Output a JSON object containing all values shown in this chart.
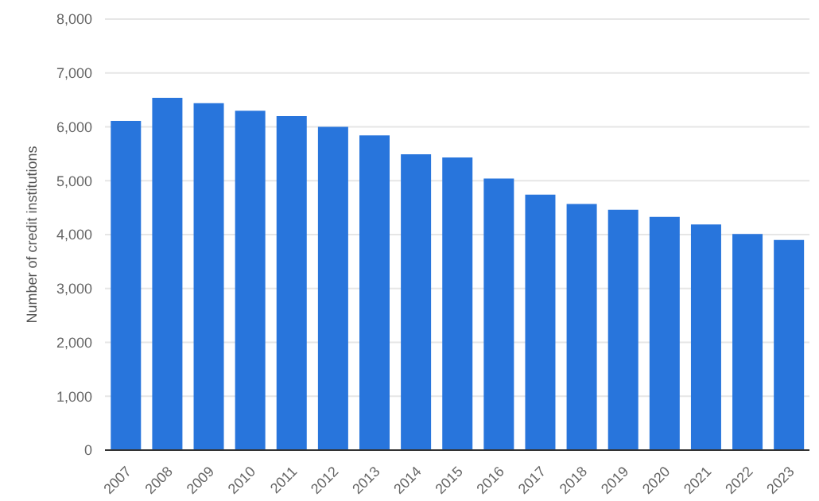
{
  "chart_data": {
    "type": "bar",
    "ylabel": "Number of credit institutions",
    "categories": [
      "2007",
      "2008",
      "2009",
      "2010",
      "2011",
      "2012",
      "2013",
      "2014",
      "2015",
      "2016",
      "2017",
      "2018",
      "2019",
      "2020",
      "2021",
      "2022",
      "2023"
    ],
    "values": [
      6110,
      6540,
      6440,
      6300,
      6200,
      6000,
      5840,
      5490,
      5430,
      5040,
      4740,
      4570,
      4460,
      4330,
      4190,
      4010,
      3900
    ],
    "color": "#2875dc",
    "ylim": [
      0,
      8000
    ],
    "yticks": [
      0,
      {
        "value": 1000,
        "label": "1,000"
      },
      {
        "value": 2000,
        "label": "2,000"
      },
      {
        "value": 3000,
        "label": "3,000"
      },
      {
        "value": 4000,
        "label": "4,000"
      },
      {
        "value": 5000,
        "label": "5,000"
      },
      {
        "value": 6000,
        "label": "6,000"
      },
      {
        "value": 7000,
        "label": "7,000"
      },
      {
        "value": 8000,
        "label": "8,000"
      }
    ],
    "grid": "y"
  }
}
